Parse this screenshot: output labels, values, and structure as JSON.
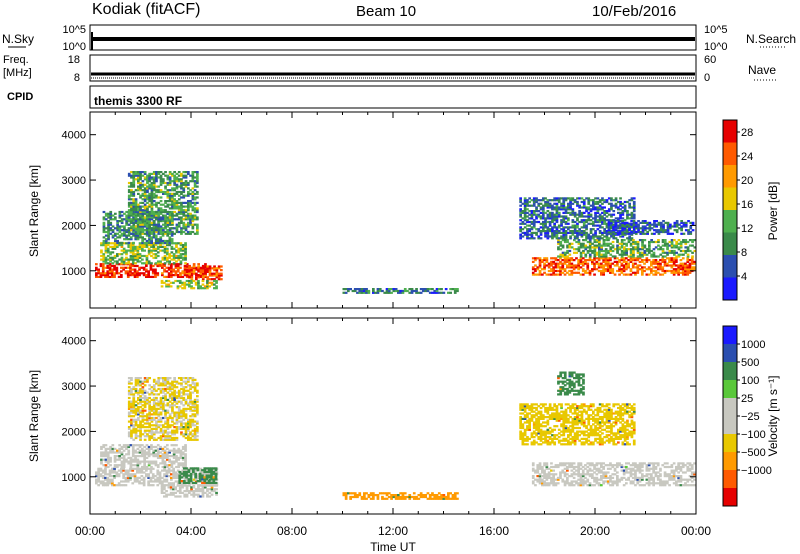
{
  "header": {
    "title": "Kodiak (fitACF)",
    "beam": "Beam 10",
    "date": "10/Feb/2016"
  },
  "panels": {
    "nsky": {
      "label": "N.Sky",
      "right_label": "N.Search",
      "ticks_left": [
        "10^5",
        "10^0"
      ],
      "ticks_right": [
        "10^5",
        "10^0"
      ]
    },
    "freq": {
      "label_line1": "Freq.",
      "label_line2": "[MHz]",
      "right_label": "Nave",
      "ticks_left": [
        "18",
        "8"
      ],
      "ticks_right": [
        "60",
        "0"
      ]
    },
    "cpid": {
      "label": "CPID",
      "program": "themis 3300 RF"
    }
  },
  "colors": {
    "power_scale": [
      "#1a1aff",
      "#2b4fb0",
      "#3a8a4a",
      "#4fb04f",
      "#e8c800",
      "#ff9a00",
      "#ff5a00",
      "#e60000"
    ],
    "velocity_scale": [
      "#e60000",
      "#ff5a00",
      "#ff9a00",
      "#e8c800",
      "#c8c8c0",
      "#c8c8c0",
      "#5ac83a",
      "#3a8a4a",
      "#2b4fb0",
      "#1a1aff"
    ]
  },
  "chart_data": [
    {
      "type": "heatmap",
      "ylabel": "Slant Range [km]",
      "xlabel": "Time UT",
      "x_ticks": [
        "00:00",
        "04:00",
        "08:00",
        "12:00",
        "16:00",
        "20:00",
        "00:00"
      ],
      "y_ticks": [
        "1000",
        "2000",
        "3000",
        "4000"
      ],
      "xlim": [
        0,
        24
      ],
      "ylim": [
        180,
        4500
      ],
      "colorbar": {
        "label": "Power [dB]",
        "ticks": [
          "4",
          "8",
          "12",
          "16",
          "20",
          "24",
          "28"
        ],
        "range": [
          0,
          30
        ]
      },
      "regions": [
        {
          "t0": 0.2,
          "t1": 4.6,
          "r0": 850,
          "r1": 1150,
          "level": 27
        },
        {
          "t0": 0.4,
          "t1": 3.8,
          "r0": 1150,
          "r1": 1600,
          "level": 14
        },
        {
          "t0": 0.5,
          "t1": 3.2,
          "r0": 1600,
          "r1": 2300,
          "level": 9
        },
        {
          "t0": 1.5,
          "t1": 4.2,
          "r0": 1800,
          "r1": 3200,
          "level": 11
        },
        {
          "t0": 3.8,
          "t1": 5.2,
          "r0": 800,
          "r1": 1100,
          "level": 26
        },
        {
          "t0": 2.8,
          "t1": 5.0,
          "r0": 600,
          "r1": 800,
          "level": 15
        },
        {
          "t0": 10.0,
          "t1": 14.5,
          "r0": 500,
          "r1": 600,
          "level": 8
        },
        {
          "t0": 17.5,
          "t1": 23.9,
          "r0": 900,
          "r1": 1300,
          "level": 24
        },
        {
          "t0": 18.5,
          "t1": 23.9,
          "r0": 1300,
          "r1": 1700,
          "level": 12
        },
        {
          "t0": 17.0,
          "t1": 21.5,
          "r0": 1700,
          "r1": 2600,
          "level": 7
        },
        {
          "t0": 20.5,
          "t1": 23.9,
          "r0": 1800,
          "r1": 2100,
          "level": 6
        }
      ]
    },
    {
      "type": "heatmap",
      "ylabel": "Slant Range [km]",
      "xlabel": "Time UT",
      "x_ticks": [
        "00:00",
        "04:00",
        "08:00",
        "12:00",
        "16:00",
        "20:00",
        "00:00"
      ],
      "y_ticks": [
        "1000",
        "2000",
        "3000",
        "4000"
      ],
      "xlim": [
        0,
        24
      ],
      "ylim": [
        180,
        4500
      ],
      "colorbar": {
        "label": "Velocity [m s⁻¹]",
        "ticks": [
          "1000",
          "500",
          "100",
          "25",
          "−25",
          "−100",
          "−500",
          "−1000"
        ],
        "range": [
          -1000,
          1000
        ]
      },
      "regions": [
        {
          "t0": 0.2,
          "t1": 5.0,
          "r0": 800,
          "r1": 1200,
          "level": 0
        },
        {
          "t0": 0.4,
          "t1": 3.8,
          "r0": 1200,
          "r1": 1700,
          "level": 5
        },
        {
          "t0": 1.5,
          "t1": 4.2,
          "r0": 1800,
          "r1": 3200,
          "level": -30
        },
        {
          "t0": 3.5,
          "t1": 5.0,
          "r0": 850,
          "r1": 1200,
          "level": 150
        },
        {
          "t0": 2.8,
          "t1": 5.0,
          "r0": 550,
          "r1": 800,
          "level": 0
        },
        {
          "t0": 10.0,
          "t1": 14.5,
          "r0": 500,
          "r1": 650,
          "level": -120
        },
        {
          "t0": 17.5,
          "t1": 23.9,
          "r0": 800,
          "r1": 1300,
          "level": 0
        },
        {
          "t0": 17.0,
          "t1": 21.5,
          "r0": 1700,
          "r1": 2600,
          "level": -60
        },
        {
          "t0": 18.5,
          "t1": 19.5,
          "r0": 2800,
          "r1": 3300,
          "level": 150
        }
      ]
    }
  ]
}
